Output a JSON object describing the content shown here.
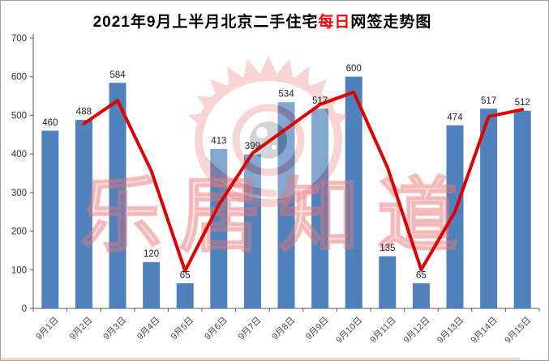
{
  "window": {
    "background": "#ffffff",
    "border_color": "#9e9e9e"
  },
  "chart_data": {
    "type": "bar",
    "title": "2021年9月上半月北京二手住宅每日网签走势图",
    "title_parts": [
      {
        "text": "2021年9月上半月北京二手住宅",
        "color": "#000000"
      },
      {
        "text": "每日",
        "color": "#ff0000"
      },
      {
        "text": "网签走势图",
        "color": "#000000"
      }
    ],
    "categories": [
      "9月1日",
      "9月2日",
      "9月3日",
      "9月4日",
      "9月5日",
      "9月6日",
      "9月7日",
      "9月8日",
      "9月9日",
      "9月10日",
      "9月11日",
      "9月12日",
      "9月13日",
      "9月14日",
      "9月15日"
    ],
    "series": [
      {
        "name": "daily_signings_bars",
        "type": "bar",
        "color": "#4f81bd",
        "values": [
          460,
          488,
          584,
          120,
          65,
          413,
          399,
          534,
          517,
          600,
          135,
          65,
          474,
          517,
          512
        ],
        "data_labels": [
          "460",
          "488",
          "584",
          "120",
          "65",
          "413",
          "399",
          "534",
          "517",
          "600",
          "135",
          "65",
          "474",
          "517",
          "512"
        ]
      },
      {
        "name": "trend_line",
        "type": "line",
        "color": "#e10000",
        "start_category_index": 1,
        "values": [
          478,
          538,
          356,
          97,
          268,
          402,
          465,
          528,
          560,
          365,
          100,
          250,
          497,
          515
        ]
      }
    ],
    "xlabel": "",
    "ylabel": "",
    "y_axis": {
      "min": 0,
      "max": 700,
      "tick_interval": 100,
      "ticks": [
        0,
        100,
        200,
        300,
        400,
        500,
        600,
        700
      ]
    },
    "x_axis_label_rotation": -45,
    "grid": false,
    "legend": false,
    "axis_color": "#595959",
    "tick_label_color": "#333333",
    "bar_label_color": "#1f1f1f"
  },
  "watermark": {
    "text": "乐居知道",
    "color": "#e87878",
    "logo": "sina-eye-logo"
  }
}
